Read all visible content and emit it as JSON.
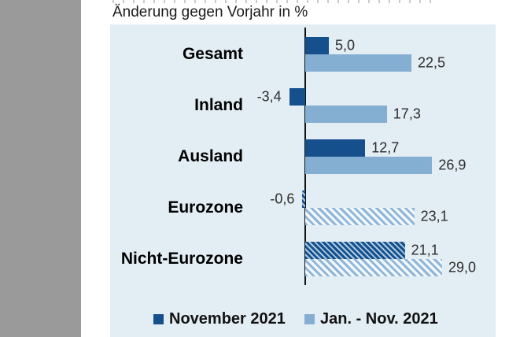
{
  "title": "Änderung gegen Vorjahr in %",
  "colors": {
    "series_dark": "#15508D",
    "series_light": "#85AED3",
    "plot_background": "#E3EDF4",
    "page_margin_gray": "#9A9A9A",
    "axis": "#101010"
  },
  "chart_data": {
    "type": "bar",
    "orientation": "horizontal",
    "title": "Änderung gegen Vorjahr in %",
    "unit": "%",
    "categories": [
      "Gesamt",
      "Inland",
      "Ausland",
      "Eurozone",
      "Nicht-Eurozone"
    ],
    "series": [
      {
        "name": "November 2021",
        "values": [
          5.0,
          -3.4,
          12.7,
          -0.6,
          21.1
        ],
        "display": [
          "5,0",
          "-3,4",
          "12,7",
          "-0,6",
          "21,1"
        ],
        "color": "#15508D"
      },
      {
        "name": "Jan. - Nov. 2021",
        "values": [
          22.5,
          17.3,
          26.9,
          23.1,
          29.0
        ],
        "display": [
          "22,5",
          "17,3",
          "26,9",
          "23,1",
          "29,0"
        ],
        "color": "#85AED3"
      }
    ],
    "hatched_categories": [
      "Eurozone",
      "Nicht-Eurozone"
    ],
    "value_labels_shown": true,
    "grid": false,
    "axis_zero_line": true,
    "legend_position": "bottom"
  }
}
